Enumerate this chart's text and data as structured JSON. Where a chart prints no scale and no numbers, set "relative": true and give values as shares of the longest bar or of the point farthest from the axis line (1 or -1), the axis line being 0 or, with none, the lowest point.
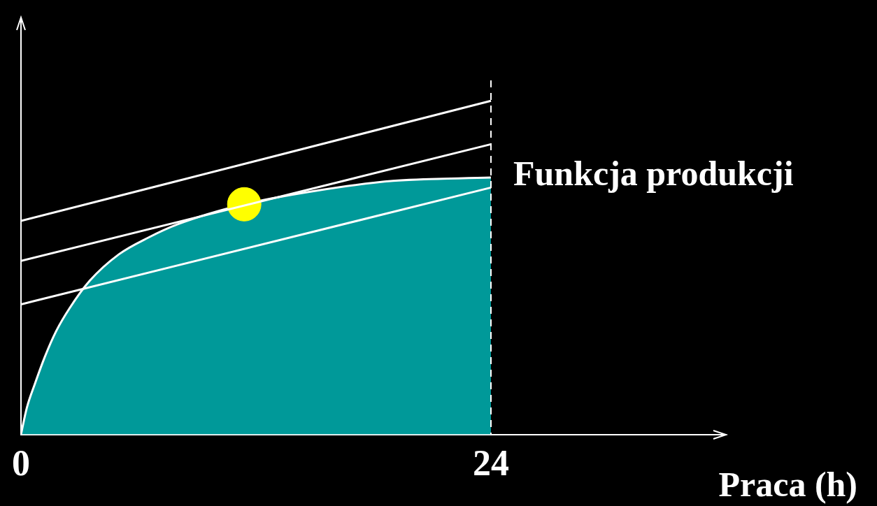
{
  "chart_data": {
    "type": "area",
    "xlabel": "Praca (h)",
    "relative": true,
    "xlim": [
      0,
      36
    ],
    "xticks": [
      0,
      24
    ],
    "grid": false,
    "legend": false,
    "marker": "none",
    "ref_lines": [
      {
        "axis": "x",
        "value": 24,
        "color": "#ffffff",
        "line_style": "dashed"
      }
    ],
    "series": [
      {
        "name": "Funkcja produkcji",
        "color": "#009999",
        "x": [
          0,
          0.3,
          0.7,
          1.2,
          1.8,
          2.5,
          3.5,
          5,
          6.5,
          8,
          11.4,
          15,
          19,
          24
        ],
        "values": [
          0,
          0.08,
          0.15,
          0.23,
          0.31,
          0.38,
          0.46,
          0.54,
          0.59,
          0.63,
          0.69,
          0.73,
          0.76,
          0.77
        ]
      },
      {
        "type": "line",
        "color": "#ffffff",
        "x": [
          0,
          24
        ],
        "values": [
          0.64,
          1
        ]
      },
      {
        "type": "line",
        "color": "#ffffff",
        "x": [
          0,
          24
        ],
        "values": [
          0.52,
          0.87
        ]
      },
      {
        "type": "line",
        "color": "#ffffff",
        "x": [
          0,
          24
        ],
        "values": [
          0.39,
          0.74
        ]
      },
      {
        "type": "scatter",
        "marker": "circle",
        "color": "#ffff00",
        "x": [
          11.4
        ],
        "values": [
          0.69
        ]
      }
    ]
  }
}
